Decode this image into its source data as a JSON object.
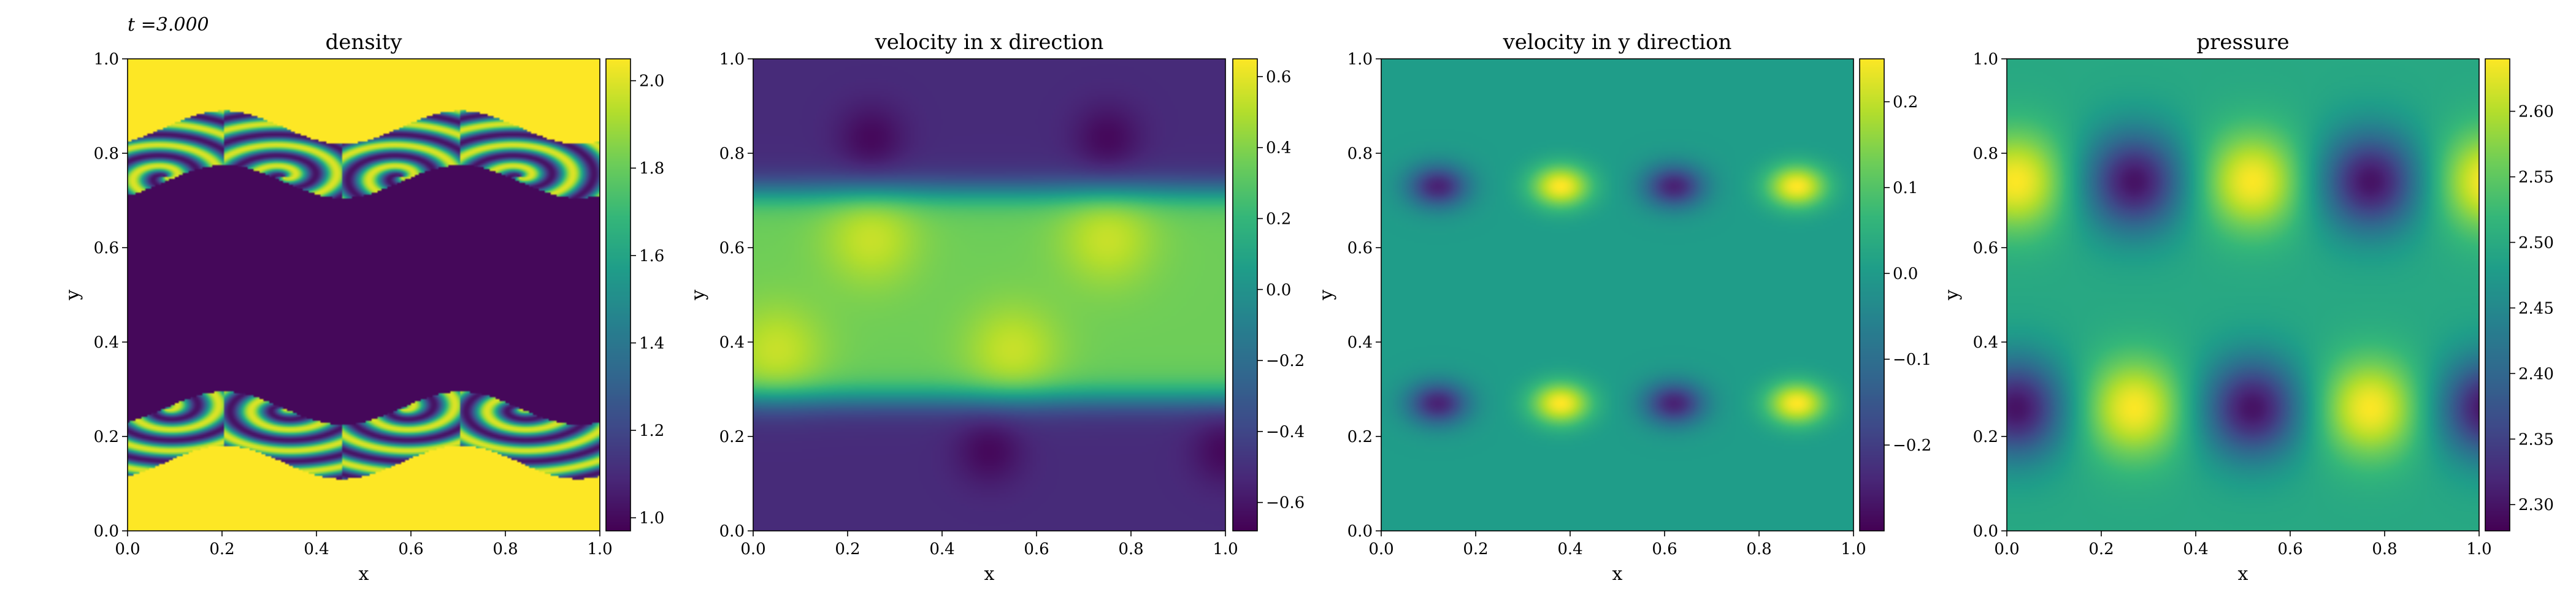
{
  "figure": {
    "time_label": "t =3.000"
  },
  "chart_data": [
    {
      "type": "heatmap",
      "title": "density",
      "xlabel": "x",
      "ylabel": "y",
      "xlim": [
        0.0,
        1.0
      ],
      "ylim": [
        0.0,
        1.0
      ],
      "x_ticks": [
        "0.0",
        "0.2",
        "0.4",
        "0.6",
        "0.8",
        "1.0"
      ],
      "y_ticks": [
        "0.0",
        "0.2",
        "0.4",
        "0.6",
        "0.8",
        "1.0"
      ],
      "colorbar": {
        "colormap": "viridis",
        "range": [
          0.97,
          2.05
        ],
        "ticks": [
          "1.0",
          "1.2",
          "1.4",
          "1.6",
          "1.8",
          "2.0"
        ]
      },
      "field": "density"
    },
    {
      "type": "heatmap",
      "title": "velocity in x direction",
      "xlabel": "x",
      "ylabel": "y",
      "xlim": [
        0.0,
        1.0
      ],
      "ylim": [
        0.0,
        1.0
      ],
      "x_ticks": [
        "0.0",
        "0.2",
        "0.4",
        "0.6",
        "0.8",
        "1.0"
      ],
      "y_ticks": [
        "0.0",
        "0.2",
        "0.4",
        "0.6",
        "0.8",
        "1.0"
      ],
      "colorbar": {
        "colormap": "viridis",
        "range": [
          -0.68,
          0.65
        ],
        "ticks": [
          "−0.6",
          "−0.4",
          "−0.2",
          "0.0",
          "0.2",
          "0.4",
          "0.6"
        ]
      },
      "field": "vx"
    },
    {
      "type": "heatmap",
      "title": "velocity in y direction",
      "xlabel": "x",
      "ylabel": "y",
      "xlim": [
        0.0,
        1.0
      ],
      "ylim": [
        0.0,
        1.0
      ],
      "x_ticks": [
        "0.0",
        "0.2",
        "0.4",
        "0.6",
        "0.8",
        "1.0"
      ],
      "y_ticks": [
        "0.0",
        "0.2",
        "0.4",
        "0.6",
        "0.8",
        "1.0"
      ],
      "colorbar": {
        "colormap": "viridis",
        "range": [
          -0.3,
          0.25
        ],
        "ticks": [
          "−0.2",
          "−0.1",
          "0.0",
          "0.1",
          "0.2"
        ]
      },
      "field": "vy"
    },
    {
      "type": "heatmap",
      "title": "pressure",
      "xlabel": "x",
      "ylabel": "y",
      "xlim": [
        0.0,
        1.0
      ],
      "ylim": [
        0.0,
        1.0
      ],
      "x_ticks": [
        "0.0",
        "0.2",
        "0.4",
        "0.6",
        "0.8",
        "1.0"
      ],
      "y_ticks": [
        "0.0",
        "0.2",
        "0.4",
        "0.6",
        "0.8",
        "1.0"
      ],
      "colorbar": {
        "colormap": "viridis",
        "range": [
          2.28,
          2.64
        ],
        "ticks": [
          "2.30",
          "2.35",
          "2.40",
          "2.45",
          "2.50",
          "2.55",
          "2.60"
        ]
      },
      "field": "pressure"
    }
  ]
}
